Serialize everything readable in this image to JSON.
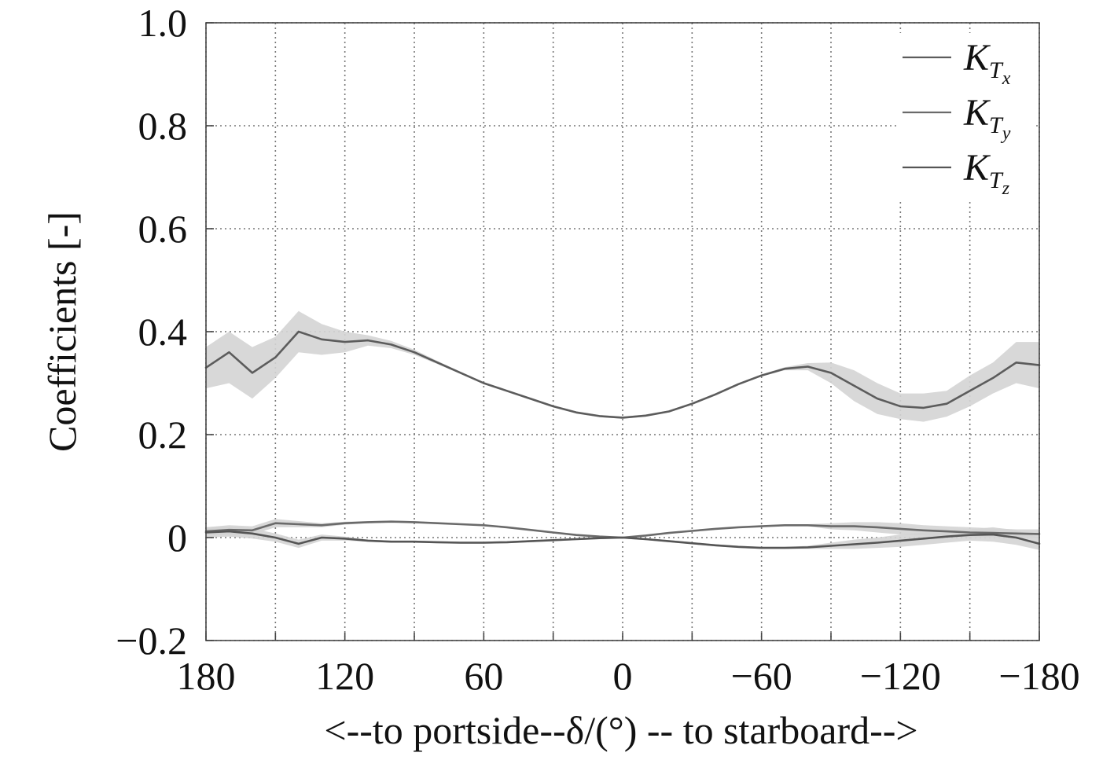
{
  "chart_data": {
    "type": "line",
    "title": "",
    "xlabel": "<--to portside--δ/(°) -- to starboard-->",
    "ylabel": "Coefficients [-]",
    "xlim": [
      180,
      -180
    ],
    "ylim": [
      -0.2,
      1.0
    ],
    "x_reversed": true,
    "grid": true,
    "legend_position": "top-right",
    "x_ticks": [
      180,
      150,
      120,
      90,
      60,
      30,
      0,
      -30,
      -60,
      -90,
      -120,
      -150,
      -180
    ],
    "x_tick_labels": [
      {
        "value": 180,
        "label": "180"
      },
      {
        "value": 120,
        "label": "120"
      },
      {
        "value": 60,
        "label": "60"
      },
      {
        "value": 0,
        "label": "0"
      },
      {
        "value": -60,
        "label": "−60"
      },
      {
        "value": -120,
        "label": "−120"
      },
      {
        "value": -180,
        "label": "−180"
      }
    ],
    "y_tick_labels": [
      {
        "value": 1.0,
        "label": "1.0"
      },
      {
        "value": 0.8,
        "label": "0.8"
      },
      {
        "value": 0.6,
        "label": "0.6"
      },
      {
        "value": 0.4,
        "label": "0.4"
      },
      {
        "value": 0.2,
        "label": "0.2"
      },
      {
        "value": 0,
        "label": "0"
      },
      {
        "value": -0.2,
        "label": "−0.2"
      }
    ],
    "band_color": "#d4d4d4",
    "series": [
      {
        "name": "K_Tx",
        "legend_main": "K",
        "legend_sub": "T",
        "legend_subsub": "x",
        "color": "#5c5c5c",
        "x": [
          180,
          170,
          160,
          150,
          140,
          130,
          120,
          110,
          100,
          90,
          80,
          70,
          60,
          50,
          40,
          30,
          20,
          10,
          0,
          -10,
          -20,
          -30,
          -40,
          -50,
          -60,
          -70,
          -80,
          -90,
          -100,
          -110,
          -120,
          -130,
          -140,
          -150,
          -160,
          -170,
          -180
        ],
        "y": [
          0.33,
          0.36,
          0.32,
          0.35,
          0.4,
          0.385,
          0.38,
          0.383,
          0.375,
          0.36,
          0.34,
          0.32,
          0.3,
          0.285,
          0.27,
          0.255,
          0.243,
          0.236,
          0.233,
          0.237,
          0.245,
          0.26,
          0.278,
          0.298,
          0.315,
          0.328,
          0.332,
          0.32,
          0.295,
          0.27,
          0.255,
          0.252,
          0.26,
          0.285,
          0.31,
          0.34,
          0.335
        ],
        "band_lower": [
          0.29,
          0.3,
          0.27,
          0.31,
          0.36,
          0.355,
          0.36,
          0.373,
          0.368,
          0.355,
          0.337,
          0.318,
          0.298,
          0.283,
          0.268,
          0.253,
          0.241,
          0.234,
          0.231,
          0.235,
          0.243,
          0.258,
          0.276,
          0.296,
          0.313,
          0.325,
          0.325,
          0.3,
          0.265,
          0.24,
          0.23,
          0.225,
          0.235,
          0.255,
          0.28,
          0.3,
          0.29
        ],
        "band_upper": [
          0.37,
          0.4,
          0.37,
          0.39,
          0.44,
          0.415,
          0.4,
          0.393,
          0.382,
          0.365,
          0.343,
          0.322,
          0.302,
          0.287,
          0.272,
          0.257,
          0.245,
          0.238,
          0.235,
          0.239,
          0.247,
          0.262,
          0.28,
          0.3,
          0.317,
          0.331,
          0.339,
          0.34,
          0.325,
          0.3,
          0.28,
          0.28,
          0.285,
          0.315,
          0.34,
          0.38,
          0.38
        ]
      },
      {
        "name": "K_Ty",
        "legend_main": "K",
        "legend_sub": "T",
        "legend_subsub": "y",
        "color": "#6a6a6a",
        "x": [
          180,
          170,
          160,
          150,
          140,
          130,
          120,
          110,
          100,
          90,
          80,
          70,
          60,
          50,
          40,
          30,
          20,
          10,
          0,
          -10,
          -20,
          -30,
          -40,
          -50,
          -60,
          -70,
          -80,
          -90,
          -100,
          -110,
          -120,
          -130,
          -140,
          -150,
          -160,
          -170,
          -180
        ],
        "y": [
          0.012,
          0.015,
          0.014,
          0.028,
          0.026,
          0.024,
          0.028,
          0.03,
          0.031,
          0.03,
          0.028,
          0.026,
          0.024,
          0.02,
          0.015,
          0.01,
          0.005,
          0.002,
          0.0,
          0.004,
          0.009,
          0.013,
          0.017,
          0.02,
          0.022,
          0.024,
          0.024,
          0.022,
          0.022,
          0.02,
          0.017,
          0.014,
          0.012,
          0.01,
          0.009,
          0.008,
          0.007
        ],
        "band_lower": [
          0.004,
          0.006,
          0.006,
          0.02,
          0.02,
          0.02,
          0.025,
          0.028,
          0.029,
          0.028,
          0.027,
          0.025,
          0.023,
          0.019,
          0.014,
          0.009,
          0.004,
          0.001,
          -0.001,
          0.003,
          0.008,
          0.012,
          0.016,
          0.019,
          0.021,
          0.023,
          0.022,
          0.016,
          0.014,
          0.01,
          0.006,
          0.004,
          0.002,
          0.0,
          0.0,
          0.0,
          -0.002
        ],
        "band_upper": [
          0.02,
          0.024,
          0.022,
          0.036,
          0.032,
          0.028,
          0.031,
          0.032,
          0.033,
          0.032,
          0.029,
          0.027,
          0.025,
          0.021,
          0.016,
          0.011,
          0.006,
          0.003,
          0.001,
          0.005,
          0.01,
          0.014,
          0.018,
          0.021,
          0.023,
          0.025,
          0.026,
          0.028,
          0.03,
          0.03,
          0.028,
          0.024,
          0.022,
          0.02,
          0.018,
          0.016,
          0.016
        ]
      },
      {
        "name": "K_Tz",
        "legend_main": "K",
        "legend_sub": "T",
        "legend_subsub": "z",
        "color": "#555555",
        "x": [
          180,
          170,
          160,
          150,
          140,
          130,
          120,
          110,
          100,
          90,
          80,
          70,
          60,
          50,
          40,
          30,
          20,
          10,
          0,
          -10,
          -20,
          -30,
          -40,
          -50,
          -60,
          -70,
          -80,
          -90,
          -100,
          -110,
          -120,
          -130,
          -140,
          -150,
          -160,
          -170,
          -180
        ],
        "y": [
          0.01,
          0.012,
          0.008,
          0.0,
          -0.012,
          0.0,
          -0.002,
          -0.006,
          -0.008,
          -0.008,
          -0.009,
          -0.01,
          -0.01,
          -0.009,
          -0.007,
          -0.005,
          -0.003,
          -0.001,
          0.0,
          -0.003,
          -0.007,
          -0.011,
          -0.015,
          -0.018,
          -0.02,
          -0.02,
          -0.019,
          -0.016,
          -0.013,
          -0.01,
          -0.006,
          -0.002,
          0.002,
          0.005,
          0.006,
          0.0,
          -0.012
        ],
        "band_lower": [
          0.0,
          0.002,
          -0.002,
          -0.008,
          -0.02,
          -0.006,
          -0.006,
          -0.008,
          -0.01,
          -0.01,
          -0.011,
          -0.012,
          -0.012,
          -0.011,
          -0.009,
          -0.007,
          -0.005,
          -0.003,
          -0.002,
          -0.005,
          -0.009,
          -0.013,
          -0.017,
          -0.02,
          -0.022,
          -0.022,
          -0.022,
          -0.022,
          -0.022,
          -0.02,
          -0.018,
          -0.014,
          -0.01,
          -0.006,
          -0.008,
          -0.014,
          -0.024
        ],
        "band_upper": [
          0.02,
          0.022,
          0.018,
          0.008,
          -0.004,
          0.006,
          0.002,
          -0.004,
          -0.006,
          -0.006,
          -0.007,
          -0.008,
          -0.008,
          -0.007,
          -0.005,
          -0.003,
          -0.001,
          0.001,
          0.002,
          -0.001,
          -0.005,
          -0.009,
          -0.013,
          -0.016,
          -0.018,
          -0.018,
          -0.016,
          -0.01,
          -0.004,
          0.0,
          0.006,
          0.01,
          0.014,
          0.016,
          0.02,
          0.014,
          0.0
        ]
      }
    ]
  }
}
